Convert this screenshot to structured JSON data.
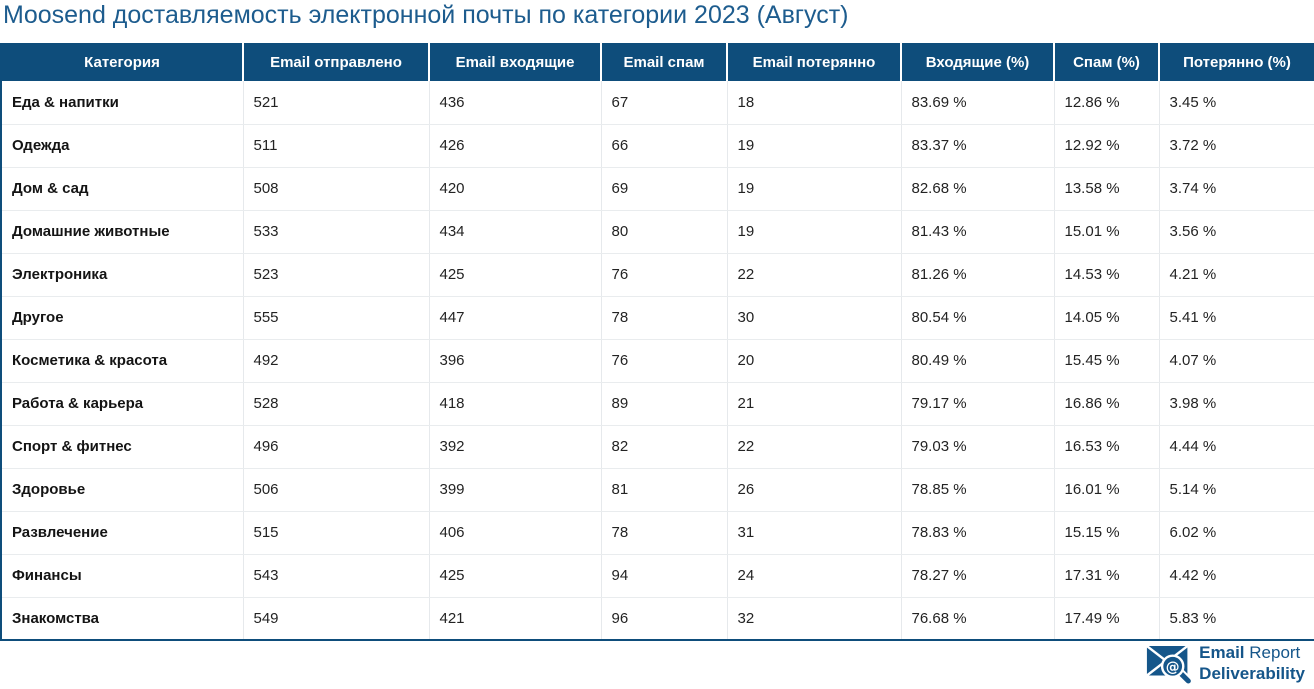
{
  "title": "Moosend доставляемость электронной почты по категории 2023 (Август)",
  "table": {
    "columns": [
      "Категория",
      "Email отправлено",
      "Email входящие",
      "Email спам",
      "Email потерянно",
      "Входящие (%)",
      "Спам (%)",
      "Потерянно (%)"
    ],
    "rows": [
      [
        "Еда & напитки",
        "521",
        "436",
        "67",
        "18",
        "83.69 %",
        "12.86 %",
        "3.45 %"
      ],
      [
        "Одежда",
        "511",
        "426",
        "66",
        "19",
        "83.37 %",
        "12.92 %",
        "3.72 %"
      ],
      [
        "Дом & сад",
        "508",
        "420",
        "69",
        "19",
        "82.68 %",
        "13.58 %",
        "3.74 %"
      ],
      [
        "Домашние животные",
        "533",
        "434",
        "80",
        "19",
        "81.43 %",
        "15.01 %",
        "3.56 %"
      ],
      [
        "Электроника",
        "523",
        "425",
        "76",
        "22",
        "81.26 %",
        "14.53 %",
        "4.21 %"
      ],
      [
        "Другое",
        "555",
        "447",
        "78",
        "30",
        "80.54 %",
        "14.05 %",
        "5.41 %"
      ],
      [
        "Косметика & красота",
        "492",
        "396",
        "76",
        "20",
        "80.49 %",
        "15.45 %",
        "4.07 %"
      ],
      [
        "Работа & карьера",
        "528",
        "418",
        "89",
        "21",
        "79.17 %",
        "16.86 %",
        "3.98 %"
      ],
      [
        "Спорт & фитнес",
        "496",
        "392",
        "82",
        "22",
        "79.03 %",
        "16.53 %",
        "4.44 %"
      ],
      [
        "Здоровье",
        "506",
        "399",
        "81",
        "26",
        "78.85 %",
        "16.01 %",
        "5.14 %"
      ],
      [
        "Развлечение",
        "515",
        "406",
        "78",
        "31",
        "78.83 %",
        "15.15 %",
        "6.02 %"
      ],
      [
        "Финансы",
        "543",
        "425",
        "94",
        "24",
        "78.27 %",
        "17.31 %",
        "4.42 %"
      ],
      [
        "Знакомства",
        "549",
        "421",
        "96",
        "32",
        "76.68 %",
        "17.49 %",
        "5.83 %"
      ]
    ]
  },
  "logo": {
    "line1_strong": "Email",
    "line1_rest": " Report",
    "line2": "Deliverability",
    "icon": "envelope-magnifier-icon"
  },
  "colors": {
    "header_bg": "#0e4d7b",
    "header_text": "#ffffff",
    "title_text": "#1d5c8e",
    "brand_blue": "#15568a",
    "row_divider": "#e9ecee"
  },
  "chart_data": {
    "type": "table",
    "title": "Moosend доставляемость электронной почты по категории 2023 (Август)",
    "columns": [
      "Категория",
      "Email отправлено",
      "Email входящие",
      "Email спам",
      "Email потерянно",
      "Входящие (%)",
      "Спам (%)",
      "Потерянно (%)"
    ],
    "categories": [
      "Еда & напитки",
      "Одежда",
      "Дом & сад",
      "Домашние животные",
      "Электроника",
      "Другое",
      "Косметика & красота",
      "Работа & карьера",
      "Спорт & фитнес",
      "Здоровье",
      "Развлечение",
      "Финансы",
      "Знакомства"
    ],
    "series": [
      {
        "name": "Email отправлено",
        "values": [
          521,
          511,
          508,
          533,
          523,
          555,
          492,
          528,
          496,
          506,
          515,
          543,
          549
        ]
      },
      {
        "name": "Email входящие",
        "values": [
          436,
          426,
          420,
          434,
          425,
          447,
          396,
          418,
          392,
          399,
          406,
          425,
          421
        ]
      },
      {
        "name": "Email спам",
        "values": [
          67,
          66,
          69,
          80,
          76,
          78,
          76,
          89,
          82,
          81,
          78,
          94,
          96
        ]
      },
      {
        "name": "Email потерянно",
        "values": [
          18,
          19,
          19,
          19,
          22,
          30,
          20,
          21,
          22,
          26,
          31,
          24,
          32
        ]
      },
      {
        "name": "Входящие (%)",
        "values": [
          83.69,
          83.37,
          82.68,
          81.43,
          81.26,
          80.54,
          80.49,
          79.17,
          79.03,
          78.85,
          78.83,
          78.27,
          76.68
        ]
      },
      {
        "name": "Спам (%)",
        "values": [
          12.86,
          12.92,
          13.58,
          15.01,
          14.53,
          14.05,
          15.45,
          16.86,
          16.53,
          16.01,
          15.15,
          17.31,
          17.49
        ]
      },
      {
        "name": "Потерянно (%)",
        "values": [
          3.45,
          3.72,
          3.74,
          3.56,
          4.21,
          5.41,
          4.07,
          3.98,
          4.44,
          5.14,
          6.02,
          4.42,
          5.83
        ]
      }
    ]
  }
}
